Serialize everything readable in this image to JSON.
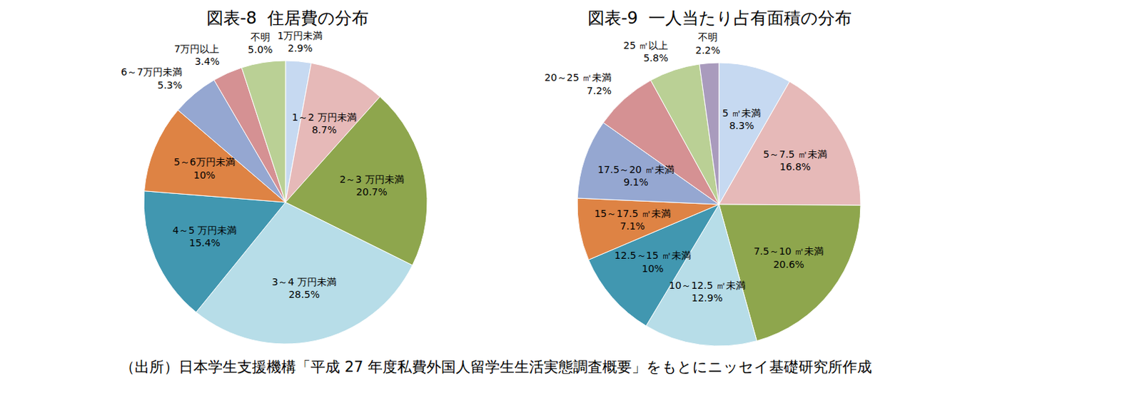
{
  "chart_data": [
    {
      "type": "pie",
      "title": "図表-8  住居費の分布",
      "categories": [
        "1万円未満",
        "1～2 万円未満",
        "2～3 万円未満",
        "3～4 万円未満",
        "4～5 万円未満",
        "5～6万円未満",
        "6～7万円未満",
        "7万円以上",
        "不明"
      ],
      "values": [
        2.9,
        8.7,
        20.7,
        28.5,
        15.4,
        10,
        5.3,
        3.4,
        5.0
      ],
      "value_labels": [
        "2.9%",
        "8.7%",
        "20.7%",
        "28.5%",
        "15.4%",
        "10%",
        "5.3%",
        "3.4%",
        "5.0%"
      ],
      "colors": [
        "#c6d9f1",
        "#e6b9b8",
        "#8ea64d",
        "#b7dde8",
        "#4197b0",
        "#de8344",
        "#95a7d1",
        "#d59193",
        "#bad095"
      ],
      "data_labels": true
    },
    {
      "type": "pie",
      "title": "図表-9  一人当たり占有面積の分布",
      "categories": [
        "5 ㎡未満",
        "5～7.5 ㎡未満",
        "7.5～10 ㎡未満",
        "10～12.5 ㎡未満",
        "12.5～15 ㎡未満",
        "15～17.5 ㎡未満",
        "17.5～20 ㎡未満",
        "20～25 ㎡未満",
        "25 ㎡以上",
        "不明"
      ],
      "values": [
        8.3,
        16.8,
        20.6,
        12.9,
        10,
        7.1,
        9.1,
        7.2,
        5.8,
        2.2
      ],
      "value_labels": [
        "8.3%",
        "16.8%",
        "20.6%",
        "12.9%",
        "10%",
        "7.1%",
        "9.1%",
        "7.2%",
        "5.8%",
        "2.2%"
      ],
      "colors": [
        "#c6d9f1",
        "#e6b9b8",
        "#8ea64d",
        "#b7dde8",
        "#4197b0",
        "#de8344",
        "#95a7d1",
        "#d59193",
        "#bad095",
        "#a99bbd"
      ],
      "data_labels": true
    }
  ],
  "source": "（出所）日本学生支援機構「平成 27 年度私費外国人留学生生活実態調査概要」をもとにニッセイ基礎研究所作成"
}
